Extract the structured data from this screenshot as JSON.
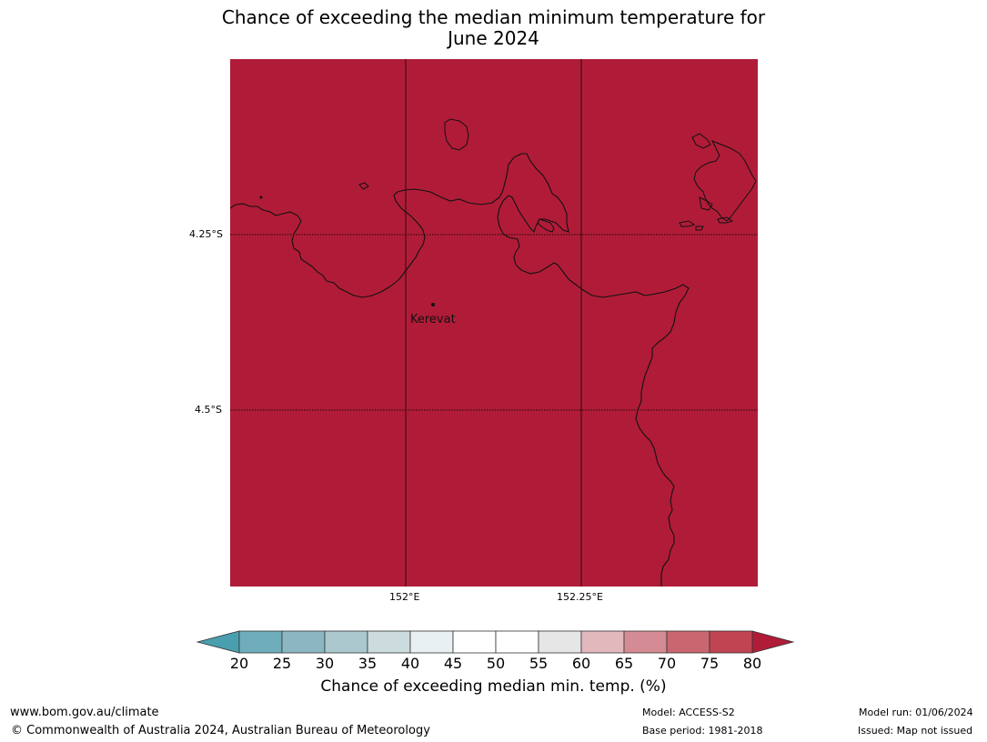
{
  "title_line1": "Chance of exceeding the median minimum temperature for",
  "title_line2": "June 2024",
  "map": {
    "land_color": "#b01c38",
    "town": "Kerevat",
    "lat_labels": [
      "4.25°S",
      "4.5°S"
    ],
    "lon_labels": [
      "152°E",
      "152.25°E"
    ]
  },
  "colorbar": {
    "title": "Chance of exceeding median min. temp. (%)",
    "ticks": [
      "20",
      "25",
      "30",
      "35",
      "40",
      "45",
      "50",
      "55",
      "60",
      "65",
      "70",
      "75",
      "80"
    ],
    "colors": [
      "#4a9fae",
      "#6fadba",
      "#8bb7c3",
      "#aac8ce",
      "#cbdbde",
      "#e9f0f1",
      "#ffffff",
      "#ffffff",
      "#e6e6e6",
      "#e3b8bd",
      "#d48b93",
      "#c96670",
      "#c04452",
      "#b01c38"
    ]
  },
  "footer": {
    "url": "www.bom.gov.au/climate",
    "copyright": "© Commonwealth of Australia 2024, Australian Bureau of Meteorology",
    "model": "Model: ACCESS-S2",
    "base_period": "Base period: 1981-2018",
    "model_run": "Model run: 01/06/2024",
    "issued": "Issued: Map not issued"
  }
}
